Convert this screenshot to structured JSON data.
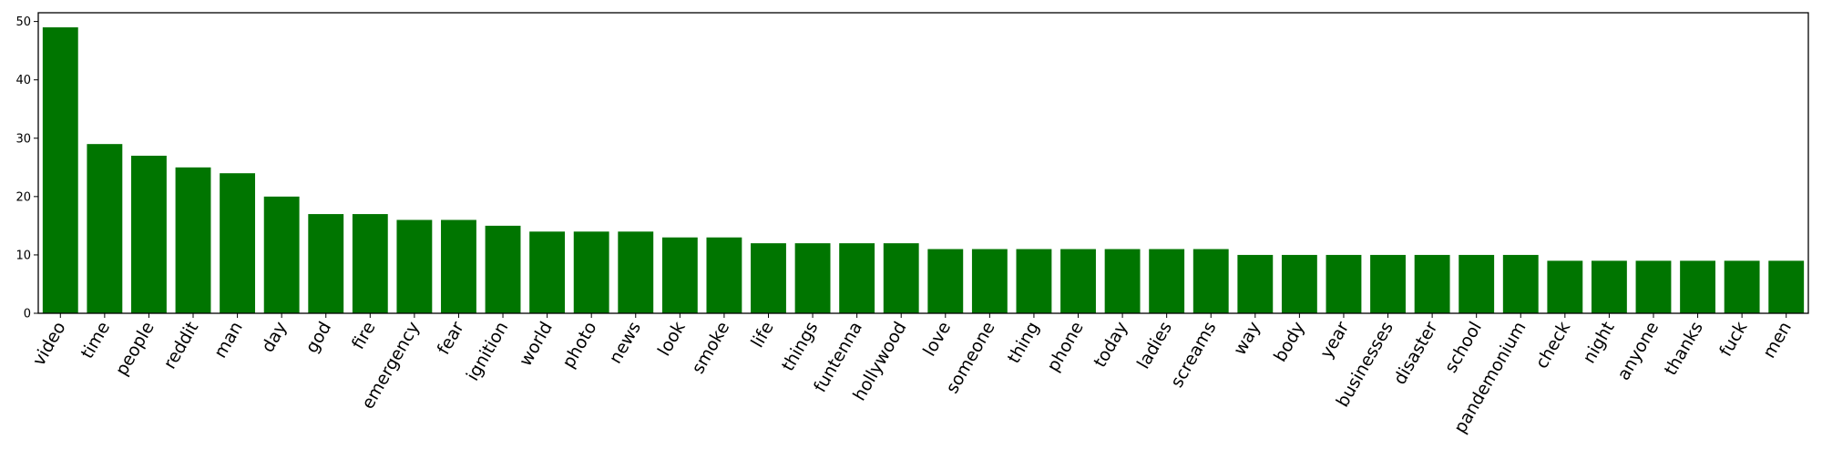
{
  "chart_data": {
    "type": "bar",
    "title": "",
    "xlabel": "",
    "ylabel": "",
    "ylim": [
      0,
      51.5
    ],
    "yticks": [
      0,
      10,
      20,
      30,
      40,
      50
    ],
    "grid": false,
    "bar_color": "#007500",
    "categories": [
      "video",
      "time",
      "people",
      "reddit",
      "man",
      "day",
      "god",
      "fire",
      "emergency",
      "fear",
      "ignition",
      "world",
      "photo",
      "news",
      "look",
      "smoke",
      "life",
      "things",
      "funtenna",
      "hollywood",
      "love",
      "someone",
      "thing",
      "phone",
      "today",
      "ladies",
      "screams",
      "way",
      "body",
      "year",
      "businesses",
      "disaster",
      "school",
      "pandemonium",
      "check",
      "night",
      "anyone",
      "thanks",
      "fuck",
      "men"
    ],
    "values": [
      49,
      29,
      27,
      25,
      24,
      20,
      17,
      17,
      16,
      16,
      15,
      14,
      14,
      14,
      13,
      13,
      12,
      12,
      12,
      12,
      11,
      11,
      11,
      11,
      11,
      11,
      11,
      10,
      10,
      10,
      10,
      10,
      10,
      10,
      9,
      9,
      9,
      9,
      9,
      9
    ]
  }
}
